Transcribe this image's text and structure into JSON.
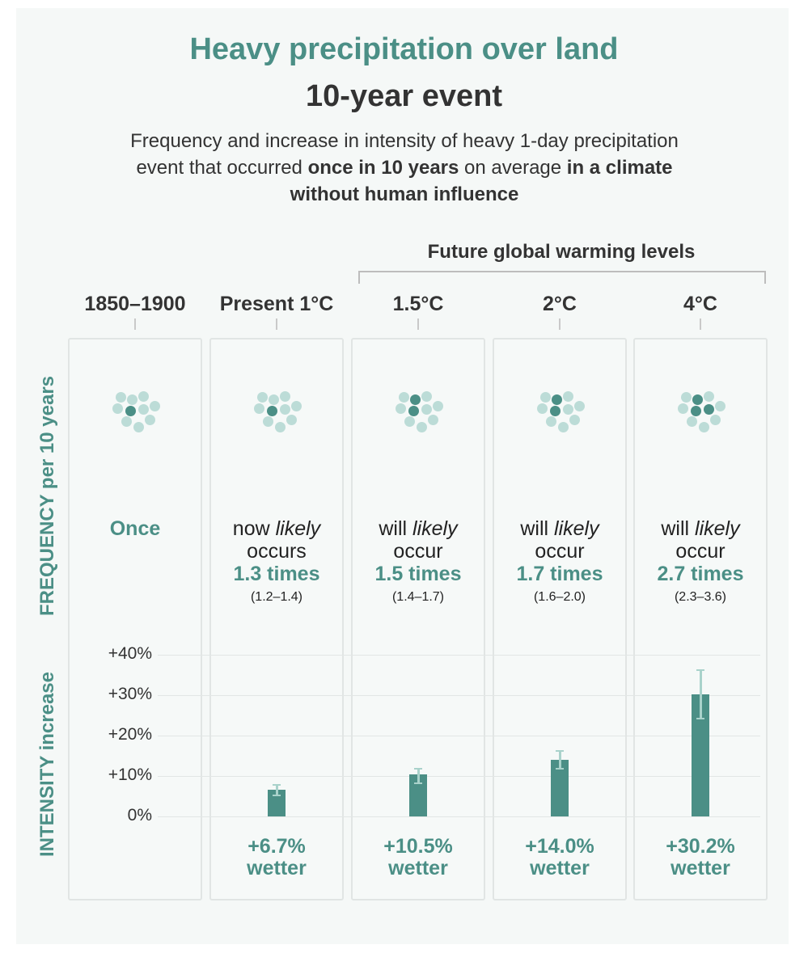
{
  "title": "Heavy precipitation over land",
  "subtitle": "10-year event",
  "description": {
    "part1": "Frequency and increase in intensity of heavy 1-day precipitation event that occurred ",
    "bold1": "once in 10 years",
    "part2": " on average ",
    "bold2": "in a climate without human influence"
  },
  "future_label": "Future global warming levels",
  "frequency_axis_label": "FREQUENCY per 10 years",
  "intensity_axis_label": "INTENSITY increase",
  "columns": [
    {
      "header": "1850–1900",
      "frequency_once": "Once",
      "dots_filled": 1
    },
    {
      "header": "Present 1°C",
      "freq_prefix": "now ",
      "freq_italic": "likely",
      "freq_verb": "occurs",
      "times": "1.3 times",
      "range": "(1.2–1.4)",
      "wetter_value": "+6.7%",
      "wetter_word": "wetter",
      "dots_filled": 1
    },
    {
      "header": "1.5°C",
      "freq_prefix": "will ",
      "freq_italic": "likely",
      "freq_verb": "occur",
      "times": "1.5 times",
      "range": "(1.4–1.7)",
      "wetter_value": "+10.5%",
      "wetter_word": "wetter",
      "dots_filled": 2
    },
    {
      "header": "2°C",
      "freq_prefix": "will ",
      "freq_italic": "likely",
      "freq_verb": "occur",
      "times": "1.7 times",
      "range": "(1.6–2.0)",
      "wetter_value": "+14.0%",
      "wetter_word": "wetter",
      "dots_filled": 2
    },
    {
      "header": "4°C",
      "freq_prefix": "will ",
      "freq_italic": "likely",
      "freq_verb": "occur",
      "times": "2.7 times",
      "range": "(2.3–3.6)",
      "wetter_value": "+30.2%",
      "wetter_word": "wetter",
      "dots_filled": 3
    }
  ],
  "colors": {
    "accent": "#4b8f86",
    "dot_light": "#bcdcd7",
    "error_bar": "#a9d2cb"
  },
  "chart_data": {
    "type": "bar",
    "title": "INTENSITY increase",
    "categories": [
      "Present 1°C",
      "1.5°C",
      "2°C",
      "4°C"
    ],
    "values": [
      6.7,
      10.5,
      14.0,
      30.2
    ],
    "error_low": [
      5.5,
      8.5,
      12.0,
      24.5
    ],
    "error_high": [
      8.0,
      12.0,
      16.5,
      36.5
    ],
    "y_ticks": [
      "+40%",
      "+30%",
      "+20%",
      "+10%",
      "0%"
    ],
    "ylim": [
      0,
      40
    ],
    "unit": "%"
  }
}
